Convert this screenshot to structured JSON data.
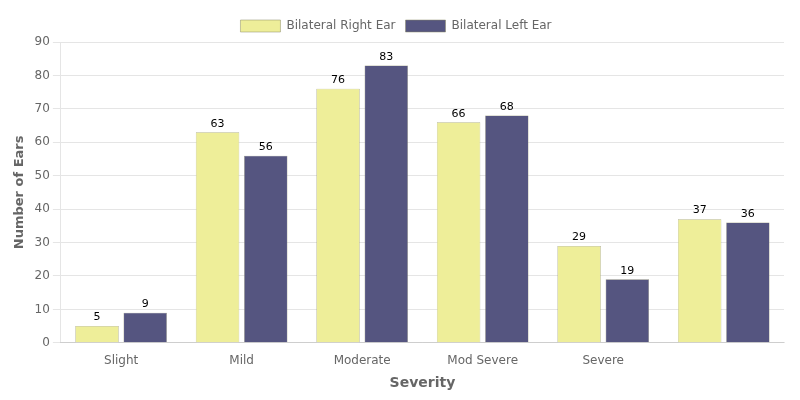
{
  "chart_data": {
    "type": "bar",
    "categories": [
      "Slight",
      "Mild",
      "Moderate",
      "Mod Severe",
      "Severe",
      null
    ],
    "series": [
      {
        "name": "Bilateral Right Ear",
        "color": "#eeee99",
        "values": [
          5,
          63,
          76,
          66,
          29,
          37
        ]
      },
      {
        "name": "Bilateral Left Ear",
        "color": "#555580",
        "values": [
          9,
          56,
          83,
          68,
          19,
          36
        ]
      }
    ],
    "xlabel": "Severity",
    "ylabel": "Number of Ears",
    "ylim": [
      0,
      90
    ],
    "yticks": [
      0,
      10,
      20,
      30,
      40,
      50,
      60,
      70,
      80,
      90
    ],
    "grid": "y",
    "legend": "top",
    "data_labels": true
  }
}
